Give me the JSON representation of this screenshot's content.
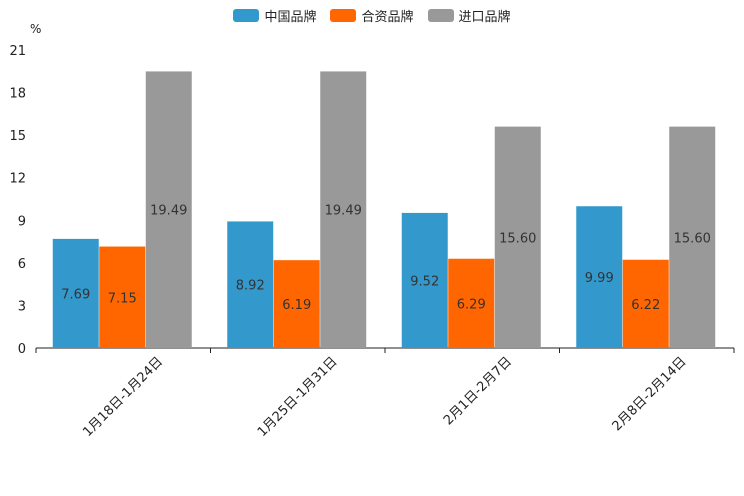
{
  "chart_data": {
    "type": "bar",
    "unit_label": "%",
    "categories": [
      "1月18日-1月24日",
      "1月25日-1月31日",
      "2月1日-2月7日",
      "2月8日-2月14日"
    ],
    "series": [
      {
        "name": "中国品牌",
        "color": "#3399cc",
        "values": [
          7.69,
          8.92,
          9.52,
          9.99
        ],
        "labels": [
          "7.69",
          "8.92",
          "9.52",
          "9.99"
        ]
      },
      {
        "name": "合资品牌",
        "color": "#ff6600",
        "values": [
          7.15,
          6.19,
          6.29,
          6.22
        ],
        "labels": [
          "7.15",
          "6.19",
          "6.29",
          "6.22"
        ]
      },
      {
        "name": "进口品牌",
        "color": "#999999",
        "values": [
          19.49,
          19.49,
          15.6,
          15.6
        ],
        "labels": [
          "19.49",
          "19.49",
          "15.60",
          "15.60"
        ]
      }
    ],
    "yticks": [
      "0",
      "3",
      "6",
      "9",
      "12",
      "15",
      "18",
      "21"
    ],
    "ylim": [
      0,
      21
    ],
    "legend_position": "top-center",
    "grid": false
  }
}
